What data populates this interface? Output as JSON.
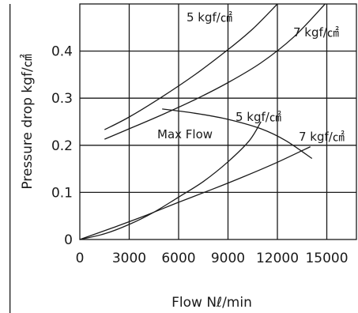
{
  "chart_data": {
    "type": "line",
    "title": "",
    "xlabel": "Flow Nℓ/min",
    "ylabel": "Pressure drop kgf/㎠",
    "xlim": [
      0,
      16800
    ],
    "ylim": [
      0,
      0.5
    ],
    "x_ticks": [
      "0",
      "3000",
      "6000",
      "9000",
      "12000",
      "15000"
    ],
    "x_tick_values": [
      0,
      3000,
      6000,
      9000,
      12000,
      15000
    ],
    "y_ticks": [
      "0",
      "0.1",
      "0.2",
      "0.3",
      "0.4"
    ],
    "y_tick_values": [
      0,
      0.1,
      0.2,
      0.3,
      0.4
    ],
    "grid": true,
    "series": [
      {
        "label": "5 kgf/㎠",
        "points": [
          [
            1500,
            0.233
          ],
          [
            3000,
            0.26
          ],
          [
            5000,
            0.303
          ],
          [
            7000,
            0.35
          ],
          [
            9000,
            0.403
          ],
          [
            10500,
            0.447
          ],
          [
            12000,
            0.5
          ]
        ]
      },
      {
        "label": "7 kgf/㎠",
        "points": [
          [
            1500,
            0.213
          ],
          [
            3000,
            0.235
          ],
          [
            5000,
            0.265
          ],
          [
            7000,
            0.297
          ],
          [
            9000,
            0.333
          ],
          [
            11000,
            0.375
          ],
          [
            13000,
            0.43
          ],
          [
            14900,
            0.5
          ]
        ]
      },
      {
        "label": "5 kgf/㎠",
        "points": [
          [
            0,
            0
          ],
          [
            1500,
            0.012
          ],
          [
            3000,
            0.032
          ],
          [
            4500,
            0.058
          ],
          [
            6000,
            0.09
          ],
          [
            7500,
            0.123
          ],
          [
            9000,
            0.165
          ],
          [
            10300,
            0.21
          ],
          [
            11000,
            0.25
          ]
        ]
      },
      {
        "label": "7 kgf/㎠",
        "points": [
          [
            0,
            0
          ],
          [
            2000,
            0.025
          ],
          [
            4000,
            0.051
          ],
          [
            6000,
            0.079
          ],
          [
            8000,
            0.106
          ],
          [
            10000,
            0.134
          ],
          [
            12000,
            0.164
          ],
          [
            14000,
            0.197
          ]
        ]
      },
      {
        "label": "Max Flow",
        "points": [
          [
            5000,
            0.277
          ],
          [
            7000,
            0.268
          ],
          [
            9000,
            0.255
          ],
          [
            11000,
            0.235
          ],
          [
            12500,
            0.21
          ],
          [
            14100,
            0.172
          ]
        ]
      }
    ]
  }
}
